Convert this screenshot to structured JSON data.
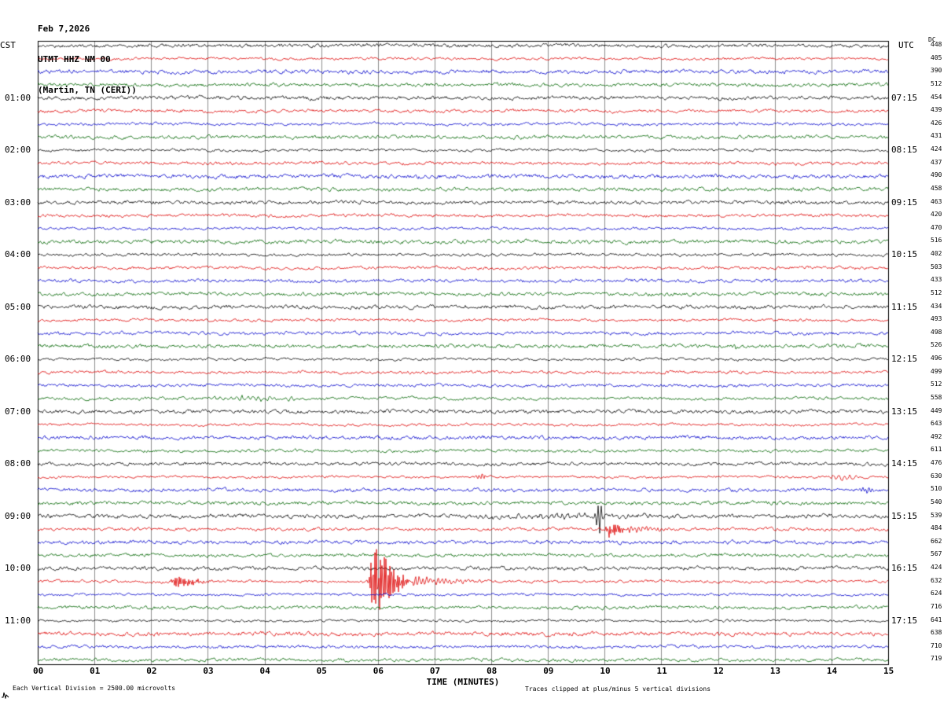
{
  "header": {
    "date": "Feb 7,2026",
    "station": "UTMT HHZ NM 00",
    "location": "(Martin, TN (CERI))"
  },
  "axes": {
    "left_title": "CST",
    "right_title": "UTC",
    "dc_title": "DC",
    "xlabel": "TIME (MINUTES)",
    "x_ticks": [
      "00",
      "01",
      "02",
      "03",
      "04",
      "05",
      "06",
      "07",
      "08",
      "09",
      "10",
      "11",
      "12",
      "13",
      "14",
      "15"
    ]
  },
  "footer": {
    "scale_note": "Each Vertical Division = 2500.00 microvolts",
    "clip_note": "Traces clipped at plus/minus 5 vertical divisions"
  },
  "chart_data": {
    "type": "line",
    "title": "UTMT HHZ NM 00 (Martin, TN (CERI)) helicorder, Feb 7, 2026",
    "x_minutes_range": [
      0,
      15
    ],
    "minutes_per_line": 15,
    "trace_color_cycle": [
      "#000000",
      "#dd0000",
      "#0000cc",
      "#006600"
    ],
    "grid_color": "#8c8c8c",
    "clip_divisions": 5,
    "microvolts_per_division": 2500.0,
    "groups": [
      {
        "left": "CST",
        "right": "UTC",
        "dc": [
          448,
          405,
          390,
          512
        ]
      },
      {
        "left": "01:00",
        "right": "07:15",
        "dc": [
          454,
          439,
          426,
          431
        ]
      },
      {
        "left": "02:00",
        "right": "08:15",
        "dc": [
          424,
          437,
          490,
          458
        ]
      },
      {
        "left": "03:00",
        "right": "09:15",
        "dc": [
          463,
          420,
          470,
          516
        ]
      },
      {
        "left": "04:00",
        "right": "10:15",
        "dc": [
          402,
          503,
          433,
          512
        ]
      },
      {
        "left": "05:00",
        "right": "11:15",
        "dc": [
          434,
          493,
          498,
          526
        ]
      },
      {
        "left": "06:00",
        "right": "12:15",
        "dc": [
          496,
          499,
          512,
          558
        ]
      },
      {
        "left": "07:00",
        "right": "13:15",
        "dc": [
          449,
          643,
          492,
          611
        ]
      },
      {
        "left": "08:00",
        "right": "14:15",
        "dc": [
          476,
          630,
          510,
          540
        ]
      },
      {
        "left": "09:00",
        "right": "15:15",
        "dc": [
          539,
          484,
          662,
          567
        ]
      },
      {
        "left": "10:00",
        "right": "16:15",
        "dc": [
          424,
          632,
          624,
          716
        ]
      },
      {
        "left": "11:00",
        "right": "17:15",
        "dc": [
          641,
          638,
          710,
          719
        ]
      }
    ],
    "events": [
      {
        "row": 23,
        "type": "spike",
        "start": 12.15,
        "end": 12.45,
        "amp": 2.5
      },
      {
        "row": 27,
        "type": "tremor",
        "start": 2.9,
        "end": 4.7,
        "amp": 2.0
      },
      {
        "row": 33,
        "type": "spike",
        "start": 7.7,
        "end": 7.95,
        "amp": 4
      },
      {
        "row": 33,
        "type": "tremor",
        "start": 13.9,
        "end": 14.5,
        "amp": 2.5
      },
      {
        "row": 34,
        "type": "spike",
        "start": 14.5,
        "end": 14.8,
        "amp": 3.5
      },
      {
        "row": 36,
        "type": "tremor",
        "start": 7.3,
        "end": 11.5,
        "amp": 1.8
      },
      {
        "row": 36,
        "type": "spike",
        "start": 9.82,
        "end": 9.98,
        "amp": 22
      },
      {
        "row": 37,
        "type": "burst",
        "start": 10.0,
        "end": 10.4,
        "amp": 10
      },
      {
        "row": 37,
        "type": "coda",
        "start": 10.4,
        "end": 12.0,
        "amp": 3
      },
      {
        "row": 41,
        "type": "burst",
        "start": 2.3,
        "end": 3.1,
        "amp": 6
      },
      {
        "row": 41,
        "type": "burst",
        "start": 5.8,
        "end": 6.6,
        "amp": 38
      },
      {
        "row": 41,
        "type": "coda",
        "start": 6.6,
        "end": 8.2,
        "amp": 5
      }
    ]
  }
}
